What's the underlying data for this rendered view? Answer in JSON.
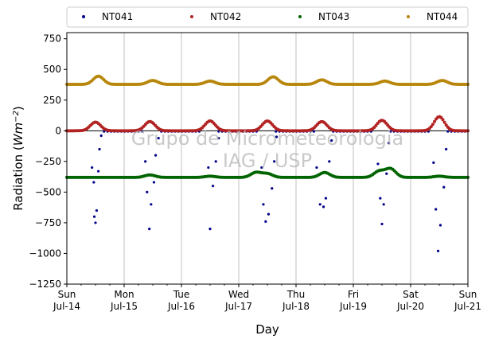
{
  "chart_data": {
    "type": "scatter",
    "xlabel": "Day",
    "ylabel_main": "Radiation (",
    "ylabel_unit": "Wm",
    "ylabel_exp": "−2",
    "ylabel_close": ")",
    "ylim": [
      -1250,
      800
    ],
    "yticks": [
      -1250,
      -1000,
      -750,
      -500,
      -250,
      0,
      250,
      500,
      750
    ],
    "ytick_labels": [
      "−1250",
      "−1000",
      "−750",
      "−500",
      "−250",
      "0",
      "250",
      "500",
      "750"
    ],
    "xlim": [
      0,
      7
    ],
    "xticks": [
      0,
      1,
      2,
      3,
      4,
      5,
      6,
      7
    ],
    "xtick_labels_day": [
      "Sun",
      "Mon",
      "Tue",
      "Wed",
      "Thu",
      "Fri",
      "Sat",
      "Sun"
    ],
    "xtick_labels_date": [
      "Jul-14",
      "Jul-15",
      "Jul-16",
      "Jul-17",
      "Jul-18",
      "Jul-19",
      "Jul-20",
      "Jul-21"
    ],
    "grid": "x-major",
    "legend_position": "top",
    "watermark_lines": [
      "Grupo de Micrometeorologia",
      "IAG / USP"
    ],
    "series": [
      {
        "name": "NT041",
        "color": "#00008b",
        "points": [
          [
            0.44,
            -300
          ],
          [
            0.47,
            -420
          ],
          [
            0.48,
            -700
          ],
          [
            0.5,
            -750
          ],
          [
            0.52,
            -650
          ],
          [
            0.55,
            -330
          ],
          [
            0.57,
            -150
          ],
          [
            0.6,
            -40
          ],
          [
            1.37,
            -250
          ],
          [
            1.4,
            -500
          ],
          [
            1.44,
            -800
          ],
          [
            1.47,
            -600
          ],
          [
            1.52,
            -420
          ],
          [
            1.55,
            -200
          ],
          [
            1.6,
            -60
          ],
          [
            2.47,
            -300
          ],
          [
            2.5,
            -800
          ],
          [
            2.55,
            -450
          ],
          [
            2.6,
            -250
          ],
          [
            2.65,
            -60
          ],
          [
            3.4,
            -300
          ],
          [
            3.43,
            -600
          ],
          [
            3.47,
            -740
          ],
          [
            3.52,
            -680
          ],
          [
            3.58,
            -470
          ],
          [
            3.62,
            -250
          ],
          [
            3.66,
            -50
          ],
          [
            4.36,
            -300
          ],
          [
            4.42,
            -600
          ],
          [
            4.48,
            -620
          ],
          [
            4.52,
            -550
          ],
          [
            4.58,
            -250
          ],
          [
            4.62,
            -80
          ],
          [
            5.43,
            -270
          ],
          [
            5.47,
            -550
          ],
          [
            5.5,
            -760
          ],
          [
            5.53,
            -600
          ],
          [
            5.58,
            -350
          ],
          [
            5.62,
            -100
          ],
          [
            6.4,
            -260
          ],
          [
            6.44,
            -640
          ],
          [
            6.48,
            -980
          ],
          [
            6.52,
            -770
          ],
          [
            6.58,
            -460
          ],
          [
            6.62,
            -150
          ]
        ]
      },
      {
        "name": "NT042",
        "color": "#b22222",
        "points": [
          [
            0.5,
            70
          ],
          [
            1.45,
            75
          ],
          [
            2.5,
            80
          ],
          [
            3.5,
            80
          ],
          [
            4.45,
            75
          ],
          [
            5.5,
            85
          ],
          [
            6.5,
            115
          ]
        ]
      },
      {
        "name": "NT043",
        "color": "#006400",
        "points": [
          [
            0.5,
            -380
          ],
          [
            1.45,
            -360
          ],
          [
            2.5,
            -370
          ],
          [
            3.3,
            -340
          ],
          [
            3.5,
            -350
          ],
          [
            4.5,
            -340
          ],
          [
            5.45,
            -330
          ],
          [
            5.65,
            -310
          ],
          [
            6.5,
            -370
          ]
        ]
      },
      {
        "name": "NT044",
        "color": "#b8860b",
        "points": [
          [
            0.55,
            445
          ],
          [
            1.5,
            410
          ],
          [
            2.5,
            405
          ],
          [
            3.6,
            440
          ],
          [
            4.45,
            415
          ],
          [
            5.55,
            405
          ],
          [
            6.55,
            410
          ]
        ]
      }
    ]
  }
}
